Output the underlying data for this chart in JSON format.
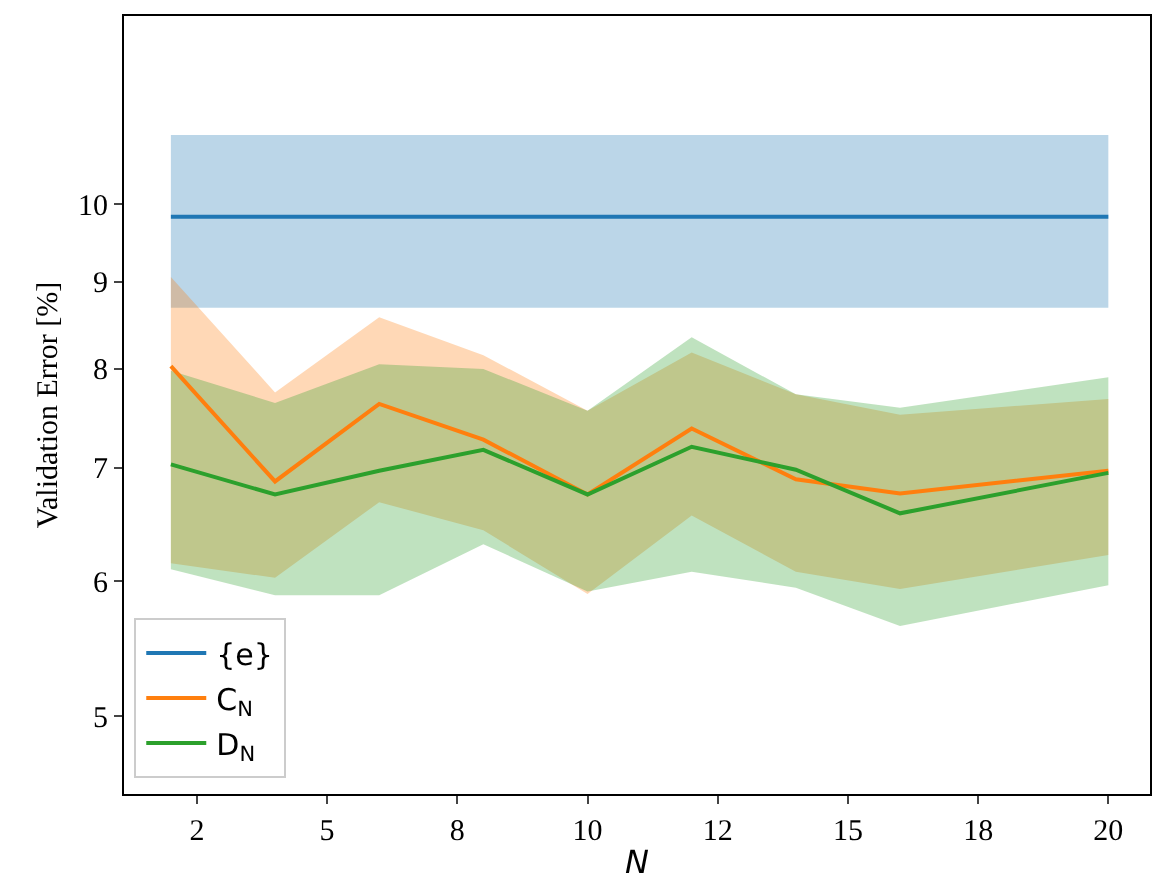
{
  "chart_data": {
    "type": "line",
    "xlabel": "N",
    "ylabel": "Validation Error [%]",
    "x": [
      2,
      4,
      6,
      8,
      10,
      12,
      14,
      16,
      20
    ],
    "series": [
      {
        "name": "{e}",
        "color": "#1f77b4",
        "values": [
          9.83,
          9.83,
          9.83,
          9.83,
          9.83,
          9.83,
          9.83,
          9.83,
          9.83
        ],
        "lower": [
          8.69,
          8.69,
          8.69,
          8.69,
          8.69,
          8.69,
          8.69,
          8.69,
          8.69
        ],
        "upper": [
          10.98,
          10.98,
          10.98,
          10.98,
          10.98,
          10.98,
          10.98,
          10.98,
          10.98
        ]
      },
      {
        "name": "C$_{N}$",
        "color": "#ff7f0e",
        "values": [
          8.03,
          6.87,
          7.63,
          7.27,
          6.75,
          7.38,
          6.89,
          6.76,
          6.97
        ],
        "lower": [
          6.15,
          6.03,
          6.68,
          6.43,
          5.9,
          6.56,
          6.08,
          5.94,
          6.22
        ],
        "upper": [
          9.06,
          7.75,
          8.58,
          8.15,
          7.56,
          8.18,
          7.73,
          7.52,
          7.68
        ]
      },
      {
        "name": "D$_{N}$",
        "color": "#2ca02c",
        "values": [
          7.03,
          6.75,
          6.97,
          7.17,
          6.75,
          7.2,
          6.98,
          6.58,
          6.95
        ],
        "lower": [
          6.1,
          5.89,
          5.89,
          6.31,
          5.92,
          6.08,
          5.95,
          5.65,
          5.97
        ],
        "upper": [
          7.98,
          7.64,
          8.05,
          8.0,
          7.56,
          8.35,
          7.73,
          7.59,
          7.91
        ]
      }
    ],
    "xlim": [
      1.1,
      20.8
    ],
    "xticks": [
      {
        "value": 2.5,
        "label": "2"
      },
      5,
      {
        "value": 7.5,
        "label": "8"
      },
      10,
      {
        "value": 12.5,
        "label": "12"
      },
      15,
      {
        "value": 17.5,
        "label": "18"
      },
      20
    ],
    "ylim": [
      4.5,
      12.9
    ],
    "yticks": [
      5,
      6,
      7,
      8,
      9,
      10
    ],
    "log": "y",
    "legend": "bottom left",
    "marker": "none",
    "line_style": "solid"
  }
}
